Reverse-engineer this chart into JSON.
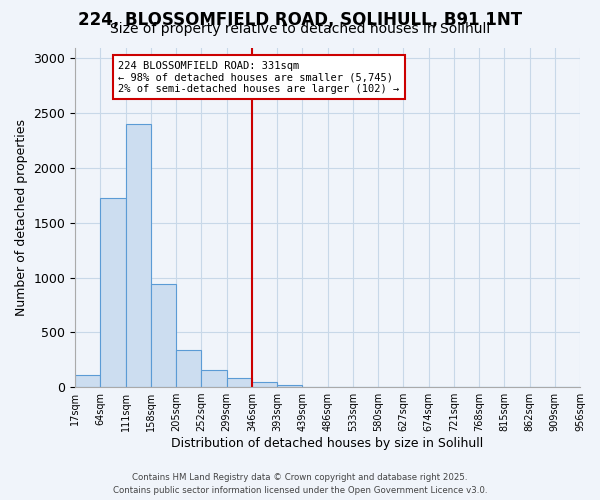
{
  "title1": "224, BLOSSOMFIELD ROAD, SOLIHULL, B91 1NT",
  "title2": "Size of property relative to detached houses in Solihull",
  "xlabel": "Distribution of detached houses by size in Solihull",
  "ylabel": "Number of detached properties",
  "bar_values": [
    110,
    1730,
    2400,
    940,
    340,
    155,
    80,
    45,
    20,
    0,
    0,
    0,
    0,
    0,
    0,
    0,
    0,
    0,
    0,
    0
  ],
  "bin_labels": [
    "17sqm",
    "64sqm",
    "111sqm",
    "158sqm",
    "205sqm",
    "252sqm",
    "299sqm",
    "346sqm",
    "393sqm",
    "439sqm",
    "486sqm",
    "533sqm",
    "580sqm",
    "627sqm",
    "674sqm",
    "721sqm",
    "768sqm",
    "815sqm",
    "862sqm",
    "909sqm",
    "956sqm"
  ],
  "bar_color": "#ccddf0",
  "bar_edge_color": "#5b9bd5",
  "vline_x": 6.5,
  "vline_color": "#cc0000",
  "annotation_line1": "224 BLOSSOMFIELD ROAD: 331sqm",
  "annotation_line2": "← 98% of detached houses are smaller (5,745)",
  "annotation_line3": "2% of semi-detached houses are larger (102) →",
  "annotation_box_edge": "#cc0000",
  "ylim": [
    0,
    3100
  ],
  "yticks": [
    0,
    500,
    1000,
    1500,
    2000,
    2500,
    3000
  ],
  "footnote1": "Contains HM Land Registry data © Crown copyright and database right 2025.",
  "footnote2": "Contains public sector information licensed under the Open Government Licence v3.0.",
  "bg_color": "#f0f4fa",
  "grid_color": "#c8d8e8",
  "title1_fontsize": 12,
  "title2_fontsize": 10
}
